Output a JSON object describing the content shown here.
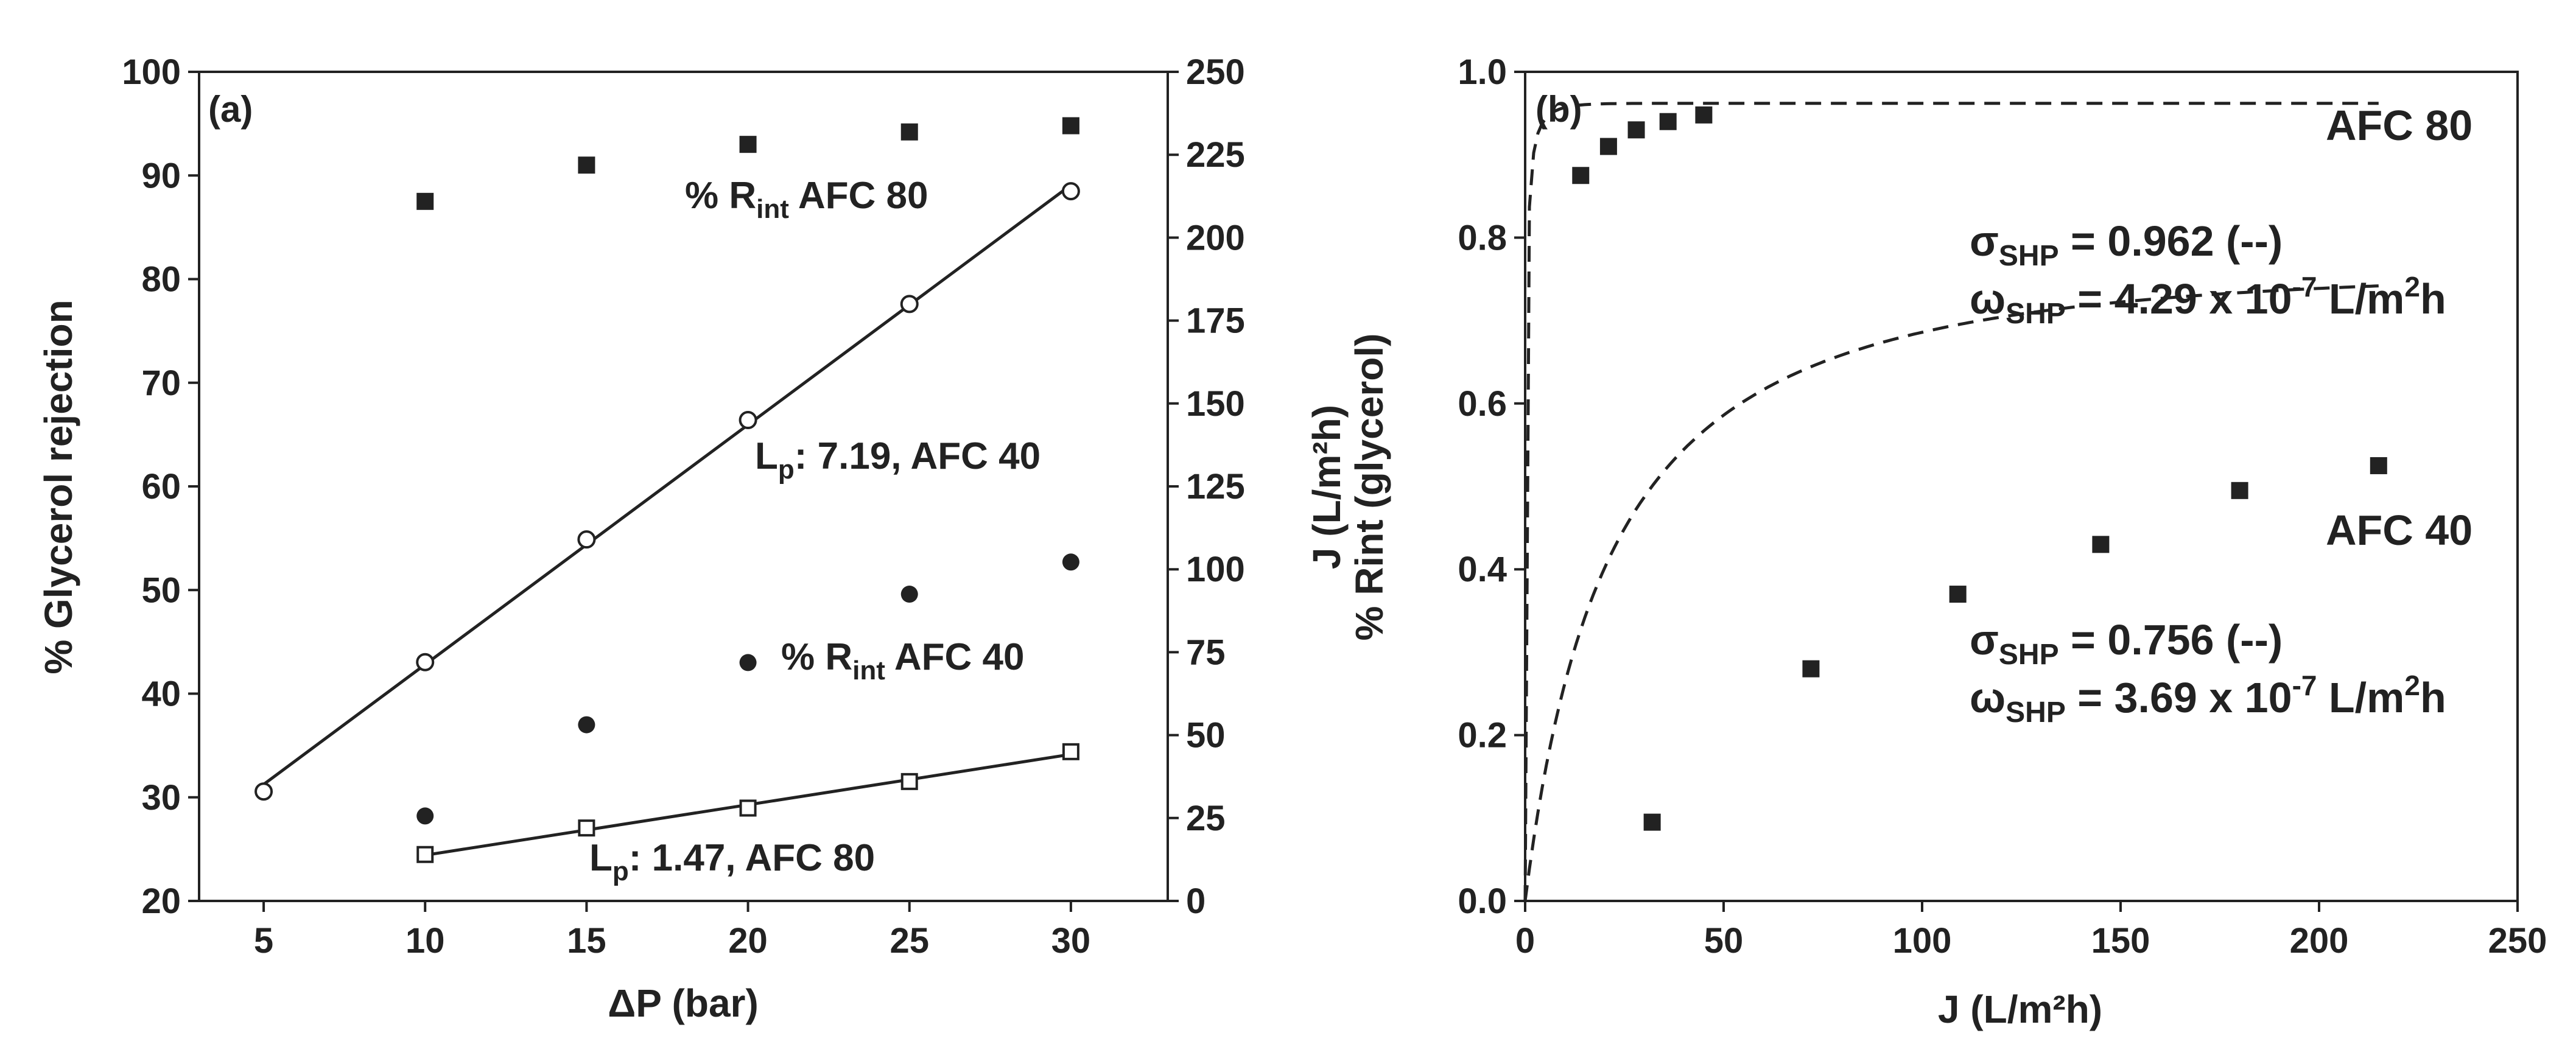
{
  "chart_data": [
    {
      "panel_label": "(a)",
      "type": "scatter",
      "xlabel": "ΔP (bar)",
      "ylabel_left": "% Glycerol rejection",
      "ylabel_right": "J (L/m²h)",
      "xlim": [
        3,
        33
      ],
      "ylim_left": [
        20,
        100
      ],
      "ylim_right": [
        0,
        250
      ],
      "xticks": [
        5,
        10,
        15,
        20,
        25,
        30
      ],
      "yticks_left": [
        20,
        30,
        40,
        50,
        60,
        70,
        80,
        90,
        100
      ],
      "yticks_right": [
        0,
        25,
        50,
        75,
        100,
        125,
        150,
        175,
        200,
        225,
        250
      ],
      "series": [
        {
          "name": "% Rint AFC 80",
          "axis": "left",
          "marker": "filled-square",
          "x": [
            10,
            15,
            20,
            25,
            30
          ],
          "y": [
            87.5,
            91,
            93,
            94.2,
            94.8
          ]
        },
        {
          "name": "% Rint AFC 40",
          "axis": "left",
          "marker": "filled-circle",
          "x": [
            10,
            15,
            20,
            25,
            30
          ],
          "y": [
            28.2,
            37,
            43,
            49.6,
            52.7
          ]
        },
        {
          "name": "J AFC 40",
          "axis": "right",
          "marker": "open-circle",
          "line": "solid",
          "x": [
            5,
            10,
            15,
            20,
            25,
            30
          ],
          "y": [
            33,
            72,
            109,
            145,
            180,
            214
          ]
        },
        {
          "name": "J AFC 80",
          "axis": "right",
          "marker": "open-square",
          "line": "solid",
          "x": [
            10,
            15,
            20,
            25,
            30
          ],
          "y": [
            14,
            22,
            28,
            36,
            45
          ]
        }
      ],
      "annotations": [
        {
          "main": "% R",
          "sub": "int",
          "tail": " AFC 80"
        },
        {
          "main": "L",
          "sub": "p",
          "tail": ": 7.19, AFC 40"
        },
        {
          "main": "% R",
          "sub": "int",
          "tail": " AFC 40"
        },
        {
          "main": "L",
          "sub": "p",
          "tail": ": 1.47, AFC 80"
        }
      ]
    },
    {
      "panel_label": "(b)",
      "type": "scatter",
      "xlabel": "J (L/m²h)",
      "ylabel_line1": "J (L/m²h)",
      "ylabel_line2": "% Rint (glycerol)",
      "xlim": [
        0,
        250
      ],
      "ylim": [
        0,
        1
      ],
      "xticks": [
        0,
        50,
        100,
        150,
        200,
        250
      ],
      "yticks": [
        "0.0",
        "0.2",
        "0.4",
        "0.6",
        "0.8",
        "1.0"
      ],
      "series": [
        {
          "name": "AFC 80",
          "marker": "filled-square",
          "x": [
            14,
            21,
            28,
            36,
            45
          ],
          "y": [
            0.875,
            0.91,
            0.93,
            0.94,
            0.948
          ]
        },
        {
          "name": "AFC 40",
          "marker": "filled-square",
          "x": [
            32,
            72,
            109,
            145,
            180,
            215
          ],
          "y": [
            0.095,
            0.28,
            0.37,
            0.43,
            0.495,
            0.525
          ]
        }
      ],
      "fits": [
        {
          "name": "AFC 80 fit",
          "style": "dashed",
          "sigma": 0.962,
          "omega": 4.29e-07
        },
        {
          "name": "AFC 40 fit",
          "style": "dashed",
          "sigma": 0.756,
          "omega": 3.69e-07
        }
      ],
      "labels": {
        "afc80": "AFC 80",
        "afc40": "AFC 40",
        "sigma80": {
          "sym": "σ",
          "sub": "SHP",
          "tail": " = 0.962  (--)"
        },
        "omega80": {
          "sym": "ω",
          "sub": "SHP",
          "mid": " = 4.29 x 10",
          "sup": "-7",
          "tail": " L/m",
          "sup2": "2",
          "tail2": "h"
        },
        "sigma40": {
          "sym": "σ",
          "sub": "SHP",
          "tail": " = 0.756 (--)"
        },
        "omega40": {
          "sym": "ω",
          "sub": "SHP",
          "mid": " = 3.69 x 10",
          "sup": "-7",
          "tail": " L/m",
          "sup2": "2",
          "tail2": "h"
        }
      }
    }
  ]
}
